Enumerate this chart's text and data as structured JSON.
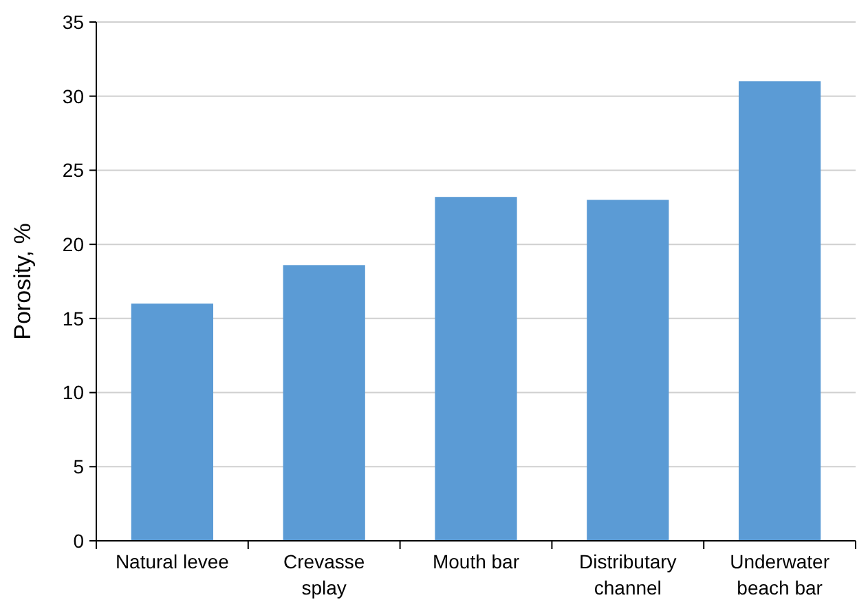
{
  "chart_data": {
    "type": "bar",
    "ylabel": "Porosity, %",
    "categories": [
      "Natural levee",
      "Crevasse\nsplay",
      "Mouth bar",
      "Distributary\nchannel",
      "Underwater\nbeach bar"
    ],
    "values": [
      16,
      18.6,
      23.2,
      23.0,
      31
    ],
    "color": "#5b9bd5",
    "ylim": [
      0,
      35
    ],
    "yticks": [
      0,
      5,
      10,
      15,
      20,
      25,
      30,
      35
    ],
    "grid": "y"
  }
}
